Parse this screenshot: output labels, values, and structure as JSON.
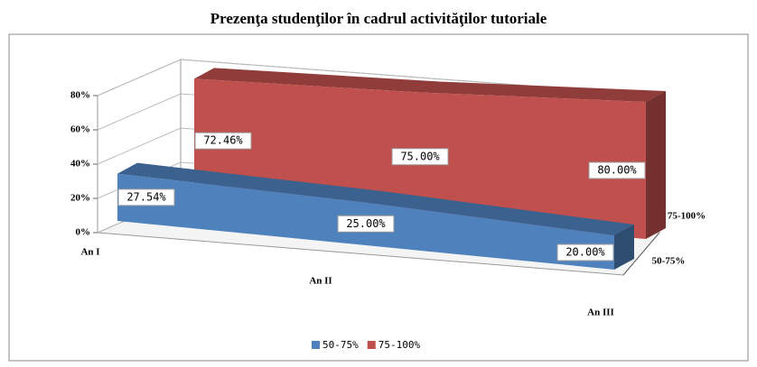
{
  "chart_data": {
    "type": "area3d",
    "title": "Prezenţa studenţilor în cadrul activităţilor tutoriale",
    "categories": [
      "An I",
      "An II",
      "An III"
    ],
    "series": [
      {
        "name": "50-75%",
        "color": "#4f81bd",
        "values": [
          27.54,
          25.0,
          20.0
        ],
        "value_labels": [
          "27.54%",
          "25.00%",
          "20.00%"
        ]
      },
      {
        "name": "75-100%",
        "color": "#c0504d",
        "values": [
          72.46,
          75.0,
          80.0
        ],
        "value_labels": [
          "72.46%",
          "75.00%",
          "80.00%"
        ]
      }
    ],
    "ylim": [
      0,
      80
    ],
    "yticks": [
      {
        "value": 0,
        "label": "0%"
      },
      {
        "value": 20,
        "label": "20%"
      },
      {
        "value": 40,
        "label": "40%"
      },
      {
        "value": 60,
        "label": "60%"
      },
      {
        "value": 80,
        "label": "80%"
      }
    ],
    "grid": true,
    "legend": "bottom"
  }
}
